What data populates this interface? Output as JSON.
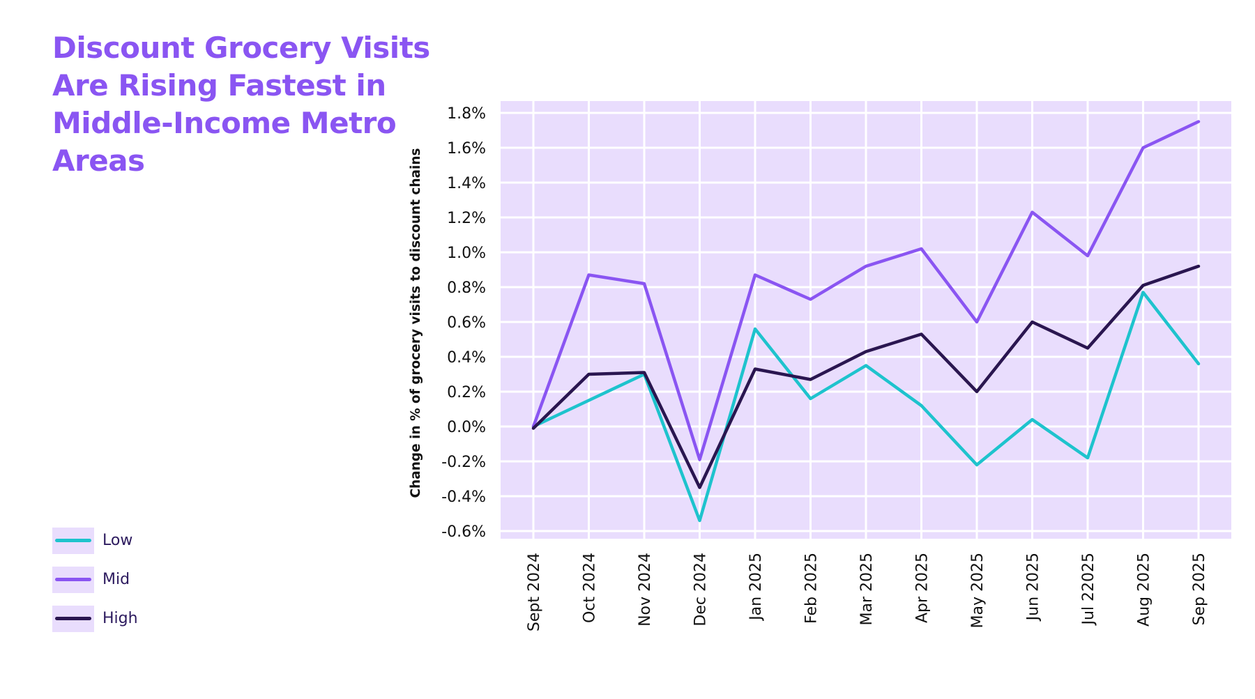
{
  "chart_data": {
    "type": "line",
    "title": "Discount Grocery Visits Are Rising Fastest in Middle-Income Metro Areas",
    "ylabel": "Change in % of grocery visits to discount chains",
    "xlabel": "",
    "ylim": [
      -0.6,
      1.8
    ],
    "yticks": [
      -0.6,
      -0.4,
      -0.2,
      0.0,
      0.2,
      0.4,
      0.6,
      0.8,
      1.0,
      1.2,
      1.4,
      1.6,
      1.8
    ],
    "ytick_labels": [
      "-0.6%",
      "-0.4%",
      "-0.2%",
      "0.0%",
      "0.2%",
      "0.4%",
      "0.6%",
      "0.8%",
      "1.0%",
      "1.2%",
      "1.4%",
      "1.6%",
      "1.8%"
    ],
    "categories": [
      "Sept 2024",
      "Oct 2024",
      "Nov 2024",
      "Dec 2024",
      "Jan 2025",
      "Feb 2025",
      "Mar 2025",
      "Apr 2025",
      "May 2025",
      "Jun 2025",
      "Jul 22025",
      "Aug 2025",
      "Sep 2025"
    ],
    "grid": true,
    "legend_placement": "bottom-left",
    "background_color": "#e9ddfd",
    "series": [
      {
        "name": "Low",
        "color": "#1ec3cd",
        "values": [
          0.0,
          0.15,
          0.3,
          -0.54,
          0.56,
          0.16,
          0.35,
          0.12,
          -0.22,
          0.04,
          -0.18,
          0.77,
          0.36
        ]
      },
      {
        "name": "Mid",
        "color": "#8a55f2",
        "values": [
          0.0,
          0.87,
          0.82,
          -0.19,
          0.87,
          0.73,
          0.92,
          1.02,
          0.6,
          1.23,
          0.98,
          1.6,
          1.75
        ]
      },
      {
        "name": "High",
        "color": "#2a1650",
        "values": [
          -0.01,
          0.3,
          0.31,
          -0.35,
          0.33,
          0.27,
          0.43,
          0.53,
          0.2,
          0.6,
          0.45,
          0.81,
          0.92
        ]
      }
    ]
  }
}
